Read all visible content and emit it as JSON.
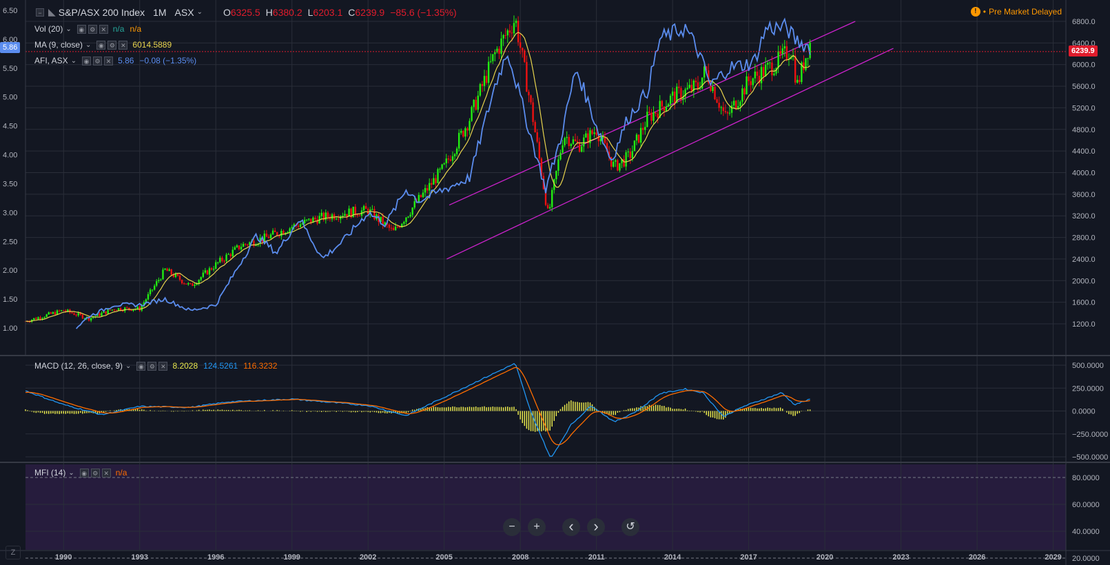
{
  "header": {
    "symbol": "S&P/ASX 200 Index",
    "interval": "1M",
    "exchange": "ASX",
    "ohlc": [
      {
        "label": "O",
        "value": "6325.5"
      },
      {
        "label": "H",
        "value": "6380.2"
      },
      {
        "label": "L",
        "value": "6203.1"
      },
      {
        "label": "C",
        "value": "6239.9"
      }
    ],
    "change": "−85.6 (−1.35%)",
    "market_status": "Pre Market Delayed"
  },
  "studies": {
    "vol": {
      "label": "Vol (20)",
      "v1": "n/a",
      "v2": "n/a"
    },
    "ma": {
      "label": "MA (9, close)",
      "value": "6014.5889"
    },
    "afi": {
      "label": "AFI, ASX",
      "value": "5.86",
      "change": "−0.08 (−1.35%)"
    },
    "macd": {
      "label": "MACD (12, 26, close, 9)",
      "hist": "8.2028",
      "macd": "124.5261",
      "signal": "116.3232"
    },
    "mfi": {
      "label": "MFI (14)",
      "value": "n/a"
    }
  },
  "price_tag": "6239.9",
  "afi_tag": "5.86",
  "axes": {
    "left_ticks": [
      "6.50",
      "6.00",
      "5.50",
      "5.00",
      "4.50",
      "4.00",
      "3.50",
      "3.00",
      "2.50",
      "2.00",
      "1.50",
      "1.00"
    ],
    "right_ticks": [
      "6800.0",
      "6400.0",
      "6000.0",
      "5600.0",
      "5200.0",
      "4800.0",
      "4400.0",
      "4000.0",
      "3600.0",
      "3200.0",
      "2800.0",
      "2400.0",
      "2000.0",
      "1600.0",
      "1200.0"
    ],
    "macd_ticks": [
      "500.0000",
      "250.0000",
      "0.0000",
      "−250.0000",
      "−500.0000"
    ],
    "mfi_ticks": [
      "80.0000",
      "60.0000",
      "40.0000",
      "20.0000"
    ],
    "x_ticks": [
      "1990",
      "1993",
      "1996",
      "1999",
      "2002",
      "2005",
      "2008",
      "2011",
      "2014",
      "2017",
      "2020",
      "2023",
      "2026",
      "2029"
    ]
  },
  "nav": {
    "zoom_out": "−",
    "zoom_in": "+",
    "back": "‹",
    "forward": "›",
    "reset": "↺"
  },
  "corner_z": "Z",
  "colors": {
    "bg": "#131722",
    "grid": "#2a2e39",
    "up": "#22ee11",
    "down": "#ee1111",
    "ma": "#e8d44d",
    "afi": "#5b8def",
    "channel": "#cc22cc",
    "mfi_bg": "#261c3d",
    "price_line": "#e01c2c",
    "macd_line": "#2196f3",
    "signal_line": "#ff6d00",
    "hist": "#e8e84d"
  },
  "chart_data": {
    "type": "candlestick",
    "interval": "1M",
    "price_axis": [
      1200,
      6800
    ],
    "afi_axis": [
      1.0,
      6.5
    ],
    "price_key": [
      [
        1988.5,
        1250
      ],
      [
        1990,
        1450
      ],
      [
        1991,
        1300
      ],
      [
        1992,
        1480
      ],
      [
        1993,
        1480
      ],
      [
        1994,
        2200
      ],
      [
        1995,
        1900
      ],
      [
        1996,
        2300
      ],
      [
        1997,
        2650
      ],
      [
        1998,
        2800
      ],
      [
        1999,
        3000
      ],
      [
        2000,
        3150
      ],
      [
        2001,
        3250
      ],
      [
        2002,
        3300
      ],
      [
        2003,
        2900
      ],
      [
        2004,
        3500
      ],
      [
        2005,
        4100
      ],
      [
        2006,
        5000
      ],
      [
        2007,
        6200
      ],
      [
        2007.8,
        6850
      ],
      [
        2008.5,
        5000
      ],
      [
        2009.1,
        3200
      ],
      [
        2009.7,
        4700
      ],
      [
        2010.3,
        4500
      ],
      [
        2011.0,
        4800
      ],
      [
        2011.7,
        4100
      ],
      [
        2012.3,
        4300
      ],
      [
        2013,
        5000
      ],
      [
        2014,
        5400
      ],
      [
        2015,
        5600
      ],
      [
        2015.3,
        5900
      ],
      [
        2016.1,
        5000
      ],
      [
        2017,
        5700
      ],
      [
        2018,
        6000
      ],
      [
        2018.7,
        6300
      ],
      [
        2018.9,
        5600
      ],
      [
        2019.4,
        6400
      ]
    ],
    "afi_key": [
      [
        1990.5,
        1.0
      ],
      [
        1991,
        1.2
      ],
      [
        1992,
        1.4
      ],
      [
        1993,
        1.4
      ],
      [
        1994,
        1.5
      ],
      [
        1995,
        1.3
      ],
      [
        1996,
        1.4
      ],
      [
        1996.8,
        2.0
      ],
      [
        1997.6,
        2.6
      ],
      [
        1998.4,
        2.3
      ],
      [
        1999.3,
        2.9
      ],
      [
        2000.2,
        2.2
      ],
      [
        2001,
        2.5
      ],
      [
        2002,
        3.0
      ],
      [
        2002.7,
        2.8
      ],
      [
        2003.5,
        3.4
      ],
      [
        2004,
        3.2
      ],
      [
        2006,
        3.6
      ],
      [
        2007,
        5.2
      ],
      [
        2007.5,
        5.8
      ],
      [
        2008.3,
        4.5
      ],
      [
        2009.0,
        3.4
      ],
      [
        2009.6,
        4.3
      ],
      [
        2010.2,
        5.5
      ],
      [
        2011,
        4.5
      ],
      [
        2011.6,
        3.9
      ],
      [
        2012.2,
        4.6
      ],
      [
        2013,
        5.1
      ],
      [
        2013.5,
        6.0
      ],
      [
        2014.5,
        6.2
      ],
      [
        2015.0,
        5.8
      ],
      [
        2015.5,
        5.2
      ],
      [
        2016.2,
        5.5
      ],
      [
        2017.2,
        5.6
      ],
      [
        2017.7,
        6.2
      ],
      [
        2018.5,
        6.2
      ],
      [
        2018.8,
        6.0
      ],
      [
        2019.4,
        5.86
      ]
    ],
    "macd_key": [
      [
        1988.5,
        220
      ],
      [
        1990,
        70
      ],
      [
        1991.5,
        -40
      ],
      [
        1993,
        50
      ],
      [
        1995,
        40
      ],
      [
        1996.5,
        100
      ],
      [
        1999,
        130
      ],
      [
        2002,
        60
      ],
      [
        2003.5,
        -50
      ],
      [
        2005,
        150
      ],
      [
        2006.5,
        350
      ],
      [
        2007.8,
        520
      ],
      [
        2008.4,
        0
      ],
      [
        2009.2,
        -520
      ],
      [
        2010,
        -150
      ],
      [
        2010.8,
        60
      ],
      [
        2011.7,
        -120
      ],
      [
        2012.6,
        0
      ],
      [
        2013.5,
        190
      ],
      [
        2014.5,
        240
      ],
      [
        2015.2,
        200
      ],
      [
        2016,
        -60
      ],
      [
        2016.8,
        50
      ],
      [
        2017.5,
        120
      ],
      [
        2018.3,
        200
      ],
      [
        2018.8,
        70
      ],
      [
        2019.4,
        125
      ]
    ],
    "channel": [
      {
        "name": "lower",
        "start": [
          2005.1,
          2400
        ],
        "end": [
          2022.7,
          6300
        ]
      },
      {
        "name": "upper",
        "start": [
          2005.2,
          3400
        ],
        "end": [
          2021.2,
          6800
        ]
      }
    ]
  }
}
